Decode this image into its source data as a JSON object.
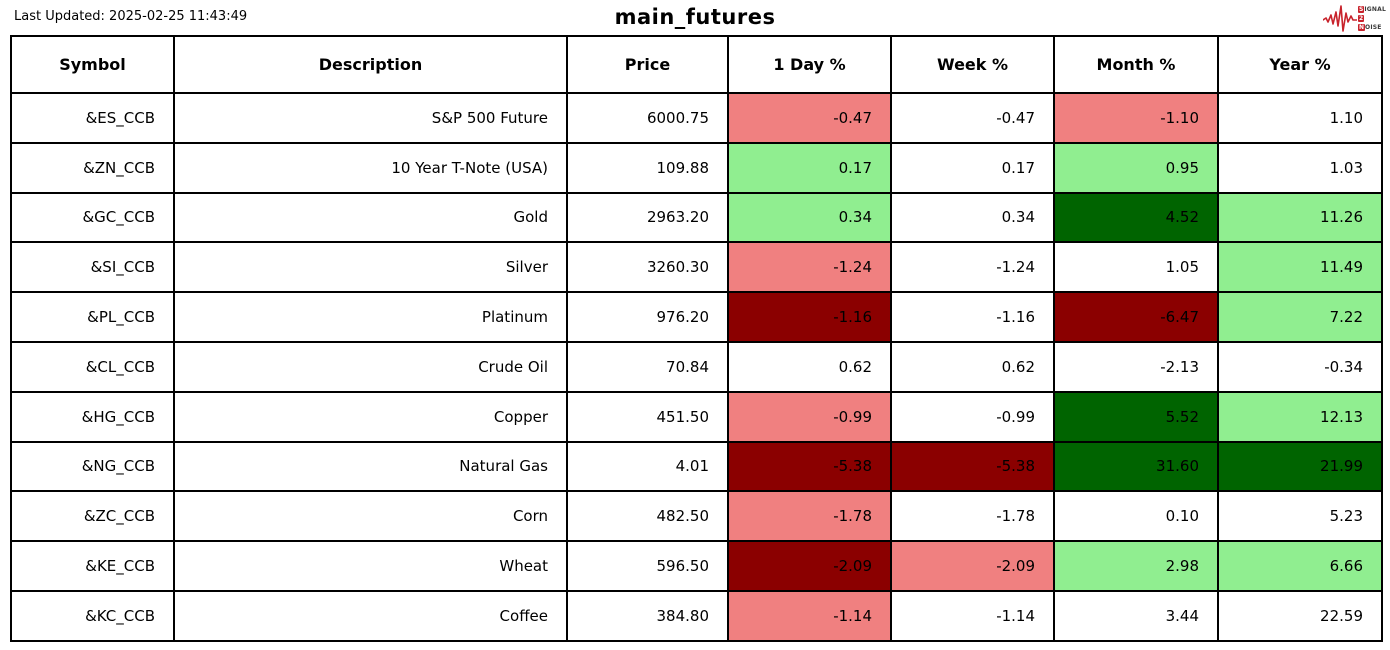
{
  "header": {
    "last_updated": "Last Updated: 2025-02-25 11:43:49",
    "logo": {
      "line1_box": "S",
      "line1_rest": "IGNAL",
      "line2_box": "2",
      "line3_box": "N",
      "line3_rest": "OISE",
      "accent_color": "#c8232c"
    }
  },
  "chart_data": {
    "type": "table",
    "title": "main_futures",
    "columns": [
      "Symbol",
      "Description",
      "Price",
      "1 Day %",
      "Week %",
      "Month %",
      "Year %"
    ],
    "cell_colors": {
      "lightred": "#F08080",
      "lightgreen": "#90EE90",
      "darkred": "#8B0000",
      "darkgreen": "#006400",
      "white": "#FFFFFF"
    },
    "rows": [
      {
        "symbol": "&ES_CCB",
        "description": "S&P 500 Future",
        "price": "6000.75",
        "day_pct": "-0.47",
        "week_pct": "-0.47",
        "month_pct": "-1.10",
        "year_pct": "1.10",
        "day_bg": "lightred",
        "week_bg": "white",
        "month_bg": "lightred",
        "year_bg": "white"
      },
      {
        "symbol": "&ZN_CCB",
        "description": "10 Year T-Note (USA)",
        "price": "109.88",
        "day_pct": "0.17",
        "week_pct": "0.17",
        "month_pct": "0.95",
        "year_pct": "1.03",
        "day_bg": "lightgreen",
        "week_bg": "white",
        "month_bg": "lightgreen",
        "year_bg": "white"
      },
      {
        "symbol": "&GC_CCB",
        "description": "Gold",
        "price": "2963.20",
        "day_pct": "0.34",
        "week_pct": "0.34",
        "month_pct": "4.52",
        "year_pct": "11.26",
        "day_bg": "lightgreen",
        "week_bg": "white",
        "month_bg": "darkgreen",
        "year_bg": "lightgreen"
      },
      {
        "symbol": "&SI_CCB",
        "description": "Silver",
        "price": "3260.30",
        "day_pct": "-1.24",
        "week_pct": "-1.24",
        "month_pct": "1.05",
        "year_pct": "11.49",
        "day_bg": "lightred",
        "week_bg": "white",
        "month_bg": "white",
        "year_bg": "lightgreen"
      },
      {
        "symbol": "&PL_CCB",
        "description": "Platinum",
        "price": "976.20",
        "day_pct": "-1.16",
        "week_pct": "-1.16",
        "month_pct": "-6.47",
        "year_pct": "7.22",
        "day_bg": "darkred",
        "week_bg": "white",
        "month_bg": "darkred",
        "year_bg": "lightgreen"
      },
      {
        "symbol": "&CL_CCB",
        "description": "Crude Oil",
        "price": "70.84",
        "day_pct": "0.62",
        "week_pct": "0.62",
        "month_pct": "-2.13",
        "year_pct": "-0.34",
        "day_bg": "white",
        "week_bg": "white",
        "month_bg": "white",
        "year_bg": "white"
      },
      {
        "symbol": "&HG_CCB",
        "description": "Copper",
        "price": "451.50",
        "day_pct": "-0.99",
        "week_pct": "-0.99",
        "month_pct": "5.52",
        "year_pct": "12.13",
        "day_bg": "lightred",
        "week_bg": "white",
        "month_bg": "darkgreen",
        "year_bg": "lightgreen"
      },
      {
        "symbol": "&NG_CCB",
        "description": "Natural Gas",
        "price": "4.01",
        "day_pct": "-5.38",
        "week_pct": "-5.38",
        "month_pct": "31.60",
        "year_pct": "21.99",
        "day_bg": "darkred",
        "week_bg": "darkred",
        "month_bg": "darkgreen",
        "year_bg": "darkgreen"
      },
      {
        "symbol": "&ZC_CCB",
        "description": "Corn",
        "price": "482.50",
        "day_pct": "-1.78",
        "week_pct": "-1.78",
        "month_pct": "0.10",
        "year_pct": "5.23",
        "day_bg": "lightred",
        "week_bg": "white",
        "month_bg": "white",
        "year_bg": "white"
      },
      {
        "symbol": "&KE_CCB",
        "description": "Wheat",
        "price": "596.50",
        "day_pct": "-2.09",
        "week_pct": "-2.09",
        "month_pct": "2.98",
        "year_pct": "6.66",
        "day_bg": "darkred",
        "week_bg": "lightred",
        "month_bg": "lightgreen",
        "year_bg": "lightgreen"
      },
      {
        "symbol": "&KC_CCB",
        "description": "Coffee",
        "price": "384.80",
        "day_pct": "-1.14",
        "week_pct": "-1.14",
        "month_pct": "3.44",
        "year_pct": "22.59",
        "day_bg": "lightred",
        "week_bg": "white",
        "month_bg": "white",
        "year_bg": "white"
      }
    ]
  }
}
